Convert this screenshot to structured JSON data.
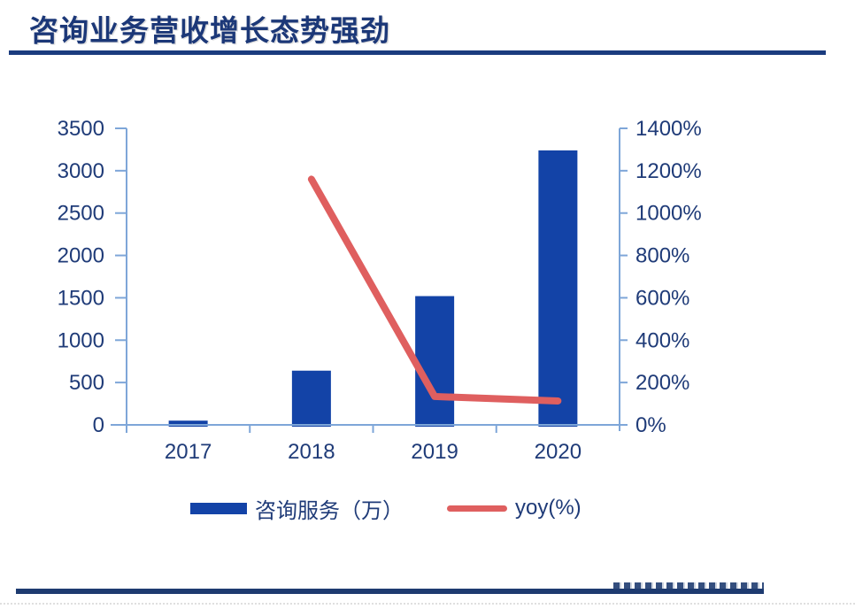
{
  "title": "咨询业务营收增长态势强劲",
  "colors": {
    "bar": "#1343A7",
    "line": "#DF5F5F",
    "axis": "#7EA6D8",
    "text": "#1F3B78",
    "title": "#1C3878",
    "rule": "#1B3C7E",
    "footer": "#1E3B70"
  },
  "chart_data": {
    "type": "bar",
    "subtype": "combo bar + line, dual axis",
    "title": "咨询业务营收增长态势强劲",
    "categories": [
      "2017",
      "2018",
      "2019",
      "2020"
    ],
    "series": [
      {
        "name": "咨询服务（万）",
        "type": "bar",
        "axis": "left",
        "values": [
          50,
          640,
          1520,
          3240
        ]
      },
      {
        "name": "yoy(%)",
        "type": "line",
        "axis": "right",
        "values": [
          null,
          1160,
          134,
          113
        ]
      }
    ],
    "left_axis": {
      "min": 0,
      "max": 3500,
      "step": 500,
      "tick_labels": [
        "0",
        "500",
        "1000",
        "1500",
        "2000",
        "2500",
        "3000",
        "3500"
      ]
    },
    "right_axis": {
      "min": 0,
      "max": 1400,
      "step": 200,
      "tick_labels": [
        "0%",
        "200%",
        "400%",
        "600%",
        "800%",
        "1000%",
        "1200%",
        "1400%"
      ]
    },
    "grid": false,
    "legend_position": "bottom"
  }
}
